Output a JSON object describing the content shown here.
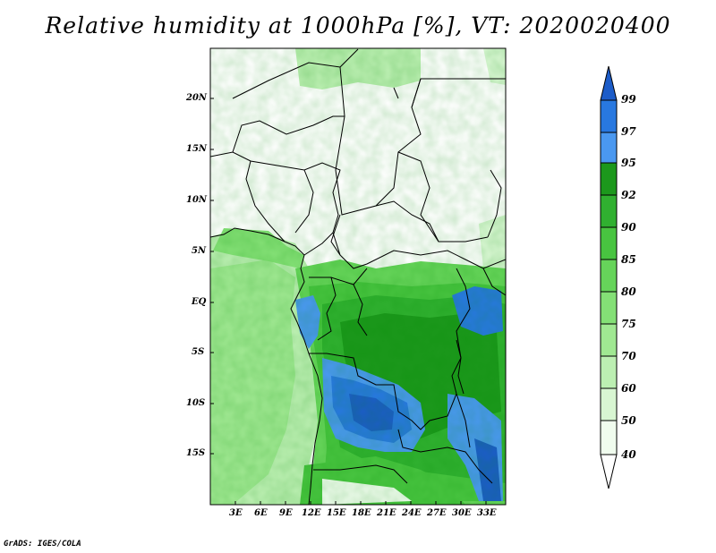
{
  "title": "Relative humidity at 1000hPa [%], VT: 2020020400",
  "credit": "GrADS: IGES/COLA",
  "map": {
    "lon_ticks": [
      "3E",
      "6E",
      "9E",
      "12E",
      "15E",
      "18E",
      "21E",
      "24E",
      "27E",
      "30E",
      "33E"
    ],
    "lat_ticks": [
      "20N",
      "15N",
      "10N",
      "5N",
      "EQ",
      "5S",
      "10S",
      "15S"
    ]
  },
  "colorbar": {
    "labels": [
      "99",
      "97",
      "95",
      "92",
      "90",
      "85",
      "80",
      "75",
      "70",
      "60",
      "50",
      "40"
    ],
    "colors": {
      "c40_50": "#f0fcee",
      "c50_60": "#d8f6d2",
      "c60_70": "#bcefb2",
      "c70_75": "#a0e892",
      "c75_80": "#84e076",
      "c80_85": "#66d45a",
      "c85_90": "#48c440",
      "c90_92": "#30b030",
      "c92_95": "#1c981c",
      "c95_97": "#4a98f0",
      "c97_99": "#2878e0",
      "c99_100": "#1c5cc8"
    }
  }
}
